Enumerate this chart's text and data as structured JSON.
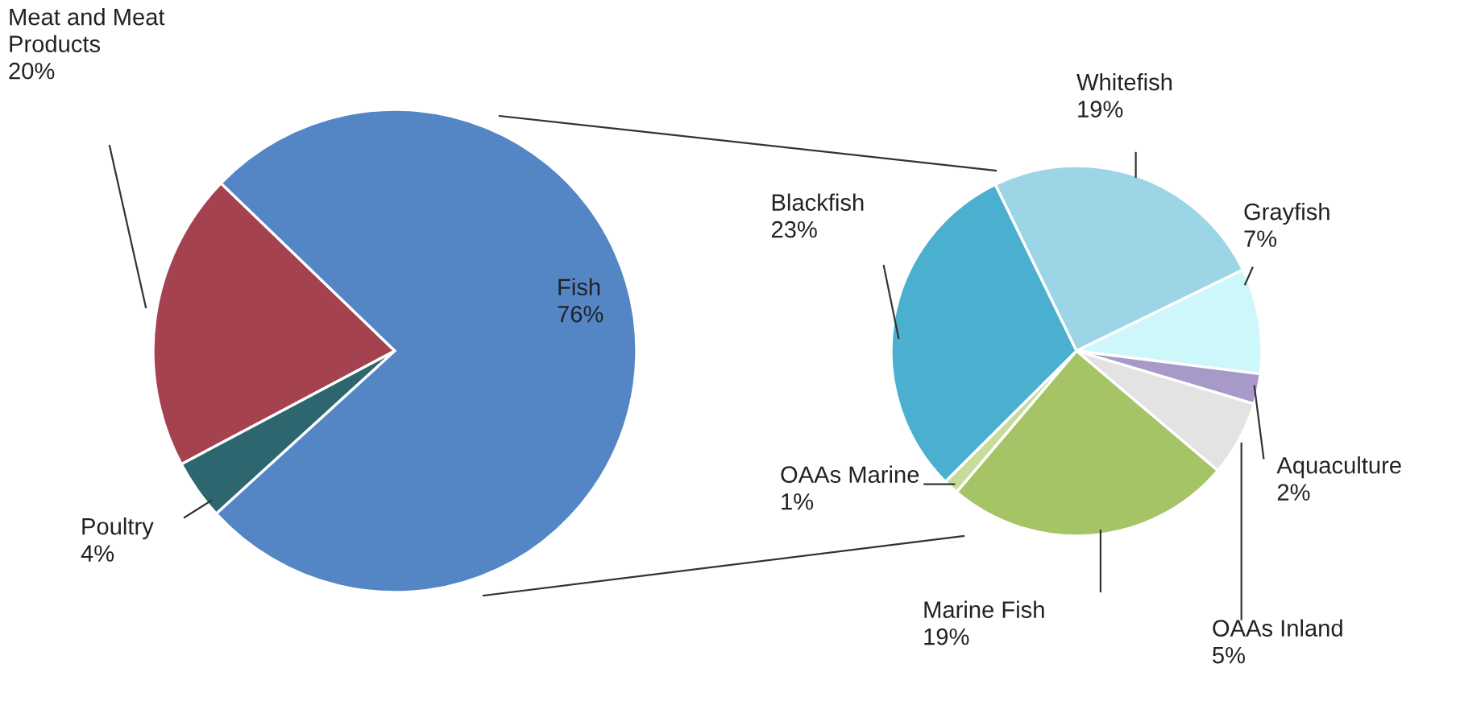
{
  "chart_data": [
    {
      "type": "pie",
      "categories": [
        "Meat and Meat Products",
        "Poultry",
        "Fish"
      ],
      "values": [
        20,
        4,
        76
      ],
      "colors": [
        "#a5424f",
        "#2e6670",
        "#5486c6"
      ],
      "value_labels": [
        "20%",
        "4%",
        "76%"
      ]
    },
    {
      "type": "pie",
      "categories": [
        "Whitefish",
        "Grayfish",
        "Aquaculture",
        "OAAs Inland",
        "Marine Fish",
        "OAAs Marine",
        "Blackfish"
      ],
      "values": [
        19,
        7,
        2,
        5,
        19,
        1,
        23
      ],
      "colors": [
        "#9cd6e6",
        "#cdf7fb",
        "#a89ac8",
        "#e3e3e3",
        "#a4c466",
        "#c8dc9a",
        "#4bb0d0"
      ],
      "value_labels": [
        "19%",
        "7%",
        "2%",
        "5%",
        "19%",
        "1%",
        "23%"
      ]
    }
  ]
}
